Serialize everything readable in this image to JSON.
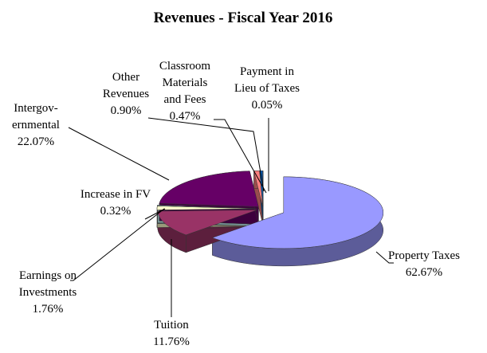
{
  "chart_data": {
    "type": "pie",
    "title": "Revenues - Fiscal Year 2016",
    "categories": [
      "Property Taxes",
      "Tuition",
      "Earnings on\nInvestments",
      "Increase in FV",
      "Intergov-\nernmental",
      "Other\nRevenues",
      "Classroom\nMaterials\nand Fees",
      "Payment in\nLieu of Taxes"
    ],
    "values": [
      62.67,
      11.76,
      1.76,
      0.32,
      22.07,
      0.9,
      0.47,
      0.05
    ],
    "value_labels": [
      "62.67%",
      "11.76%",
      "1.76%",
      "0.32%",
      "22.07%",
      "0.90%",
      "0.47%",
      "0.05%"
    ],
    "colors": [
      "#9999ff",
      "#993366",
      "#ffffcc",
      "#ccffff",
      "#660066",
      "#ff8080",
      "#0066cc",
      "#ccccff"
    ]
  }
}
